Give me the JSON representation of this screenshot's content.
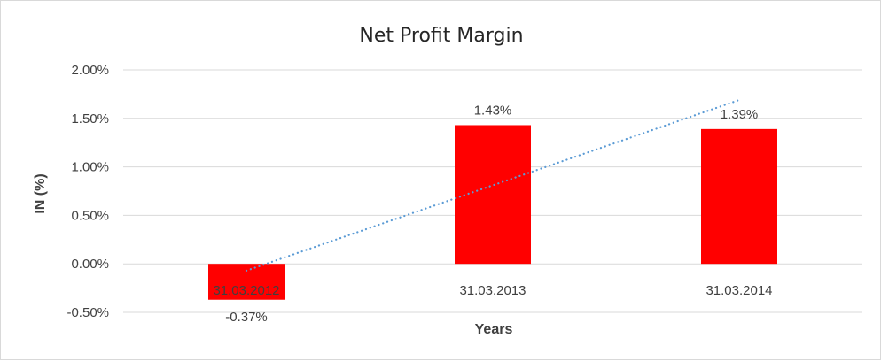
{
  "chart_data": {
    "type": "bar",
    "title": "Net Profit Margin",
    "xlabel": "Years",
    "ylabel": "IN (%)",
    "categories": [
      "31.03.2012",
      "31.03.2013",
      "31.03.2014"
    ],
    "values": [
      -0.37,
      1.43,
      1.39
    ],
    "data_labels": [
      "-0.37%",
      "1.43%",
      "1.39%"
    ],
    "ylim": [
      -0.5,
      2.0
    ],
    "yticks": [
      2.0,
      1.5,
      1.0,
      0.5,
      0.0,
      -0.5
    ],
    "ytick_labels": [
      "2.00%",
      "1.50%",
      "1.00%",
      "0.50%",
      "0.00%",
      "-0.50%"
    ],
    "grid": true,
    "trendline": {
      "type": "linear",
      "style": "dotted",
      "start": -0.07,
      "end": 1.69
    },
    "colors": {
      "bar": "#ff0000",
      "trendline": "#5b9bd5",
      "grid": "#d9d9d9"
    }
  }
}
